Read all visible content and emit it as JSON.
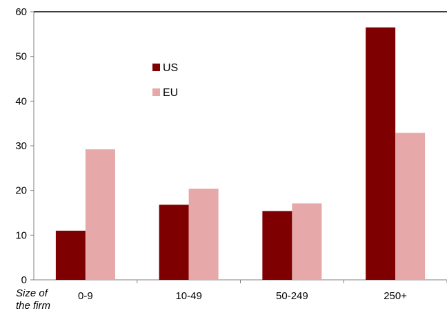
{
  "chart_data": {
    "type": "bar",
    "categories": [
      "0-9",
      "10-49",
      "50-249",
      "250+"
    ],
    "series": [
      {
        "name": "US",
        "values": [
          11,
          16.8,
          15.4,
          56.5
        ],
        "color": "#7f0000"
      },
      {
        "name": "EU",
        "values": [
          29.2,
          20.4,
          17.1,
          32.9
        ],
        "color": "#e6a8a8"
      }
    ],
    "xlabel_lines": [
      "Size of",
      "the firm"
    ],
    "ylim": [
      0,
      60
    ],
    "yticks": [
      0,
      10,
      20,
      30,
      40,
      50,
      60
    ],
    "grid": false,
    "legend_position": "top-center"
  }
}
